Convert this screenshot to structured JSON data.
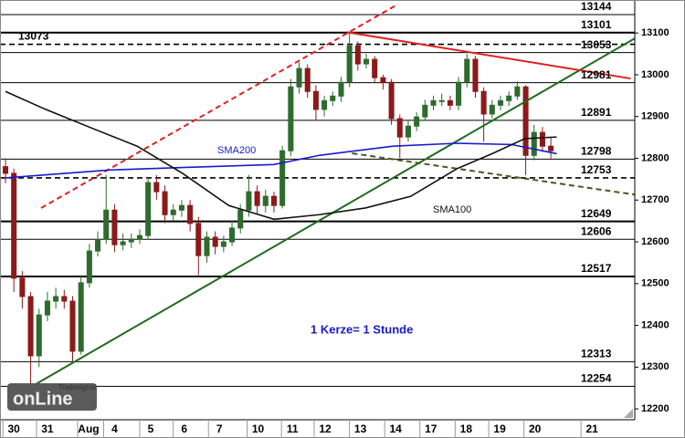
{
  "chart_data": {
    "type": "candlestick",
    "xlim": [
      0,
      75
    ],
    "ylim": [
      12174,
      13179
    ],
    "xticks": [
      {
        "value": 1,
        "label": "30"
      },
      {
        "value": 5,
        "label": "31"
      },
      {
        "value": 9.9,
        "label": "Aug"
      },
      {
        "value": 13,
        "label": "4"
      },
      {
        "value": 17.3,
        "label": "5"
      },
      {
        "value": 21.3,
        "label": "6"
      },
      {
        "value": 25.5,
        "label": "7"
      },
      {
        "value": 30.1,
        "label": "10"
      },
      {
        "value": 34.2,
        "label": "11"
      },
      {
        "value": 38.1,
        "label": "12"
      },
      {
        "value": 42.3,
        "label": "13"
      },
      {
        "value": 46.5,
        "label": "14"
      },
      {
        "value": 50.7,
        "label": "17"
      },
      {
        "value": 54.9,
        "label": "18"
      },
      {
        "value": 58.9,
        "label": "19"
      },
      {
        "value": 63.1,
        "label": "20"
      },
      {
        "value": 69.9,
        "label": "21"
      }
    ],
    "yticks": [
      13100,
      13000,
      12900,
      12800,
      12700,
      12600,
      12500,
      12400,
      12300,
      12200
    ],
    "up_color": "#2e6b2e",
    "down_color": "#8b1a1a",
    "candles": [
      [
        12780,
        12800,
        12740,
        12764
      ],
      [
        12764,
        12775,
        12480,
        12513
      ],
      [
        12513,
        12530,
        12440,
        12469
      ],
      [
        12469,
        12480,
        12254,
        12327
      ],
      [
        12327,
        12440,
        12300,
        12425
      ],
      [
        12425,
        12480,
        12410,
        12458
      ],
      [
        12458,
        12490,
        12440,
        12469
      ],
      [
        12469,
        12485,
        12440,
        12458
      ],
      [
        12458,
        12470,
        12310,
        12338
      ],
      [
        12338,
        12520,
        12330,
        12502
      ],
      [
        12502,
        12595,
        12490,
        12578
      ],
      [
        12578,
        12625,
        12565,
        12606
      ],
      [
        12606,
        12760,
        12595,
        12676
      ],
      [
        12676,
        12690,
        12575,
        12593
      ],
      [
        12593,
        12620,
        12580,
        12600
      ],
      [
        12600,
        12620,
        12585,
        12606
      ],
      [
        12606,
        12630,
        12595,
        12615
      ],
      [
        12615,
        12755,
        12605,
        12742
      ],
      [
        12742,
        12760,
        12700,
        12720
      ],
      [
        12720,
        12735,
        12645,
        12665
      ],
      [
        12665,
        12690,
        12650,
        12676
      ],
      [
        12676,
        12700,
        12660,
        12687
      ],
      [
        12687,
        12700,
        12625,
        12644
      ],
      [
        12644,
        12660,
        12520,
        12567
      ],
      [
        12567,
        12625,
        12550,
        12611
      ],
      [
        12611,
        12625,
        12570,
        12589
      ],
      [
        12589,
        12615,
        12575,
        12600
      ],
      [
        12600,
        12650,
        12590,
        12633
      ],
      [
        12633,
        12690,
        12620,
        12676
      ],
      [
        12676,
        12760,
        12660,
        12720
      ],
      [
        12720,
        12735,
        12665,
        12687
      ],
      [
        12687,
        12725,
        12670,
        12709
      ],
      [
        12709,
        12720,
        12670,
        12687
      ],
      [
        12687,
        12830,
        12680,
        12818
      ],
      [
        12818,
        12990,
        12805,
        12971
      ],
      [
        12971,
        13030,
        12955,
        13015
      ],
      [
        13015,
        13025,
        12945,
        12960
      ],
      [
        12960,
        12975,
        12890,
        12917
      ],
      [
        12917,
        12950,
        12900,
        12938
      ],
      [
        12938,
        12960,
        12925,
        12949
      ],
      [
        12949,
        12995,
        12935,
        12982
      ],
      [
        12982,
        13101,
        12970,
        13069
      ],
      [
        13069,
        13080,
        13010,
        13026
      ],
      [
        13026,
        13050,
        13015,
        13037
      ],
      [
        13037,
        13045,
        12980,
        12993
      ],
      [
        12993,
        13000,
        12965,
        12982
      ],
      [
        12982,
        12990,
        12880,
        12895
      ],
      [
        12895,
        12905,
        12800,
        12851
      ],
      [
        12851,
        12890,
        12840,
        12877
      ],
      [
        12877,
        12910,
        12865,
        12899
      ],
      [
        12899,
        12940,
        12890,
        12927
      ],
      [
        12927,
        12950,
        12915,
        12938
      ],
      [
        12938,
        12955,
        12925,
        12938
      ],
      [
        12938,
        12950,
        12915,
        12927
      ],
      [
        12927,
        12995,
        12915,
        12982
      ],
      [
        12982,
        13050,
        12970,
        13037
      ],
      [
        13037,
        13045,
        12945,
        12960
      ],
      [
        12960,
        12970,
        12840,
        12906
      ],
      [
        12906,
        12940,
        12895,
        12927
      ],
      [
        12927,
        12950,
        12915,
        12938
      ],
      [
        12938,
        12960,
        12925,
        12949
      ],
      [
        12949,
        12985,
        12940,
        12971
      ],
      [
        12971,
        12975,
        12760,
        12807
      ],
      [
        12807,
        12880,
        12795,
        12862
      ],
      [
        12862,
        12875,
        12815,
        12829
      ],
      [
        12829,
        12850,
        12800,
        12818
      ]
    ],
    "levels": [
      {
        "value": 13144,
        "style": "solid",
        "label_side": "right"
      },
      {
        "value": 13101,
        "style": "thick",
        "label_side": "right"
      },
      {
        "value": 13073,
        "style": "dashed",
        "label_side": "left"
      },
      {
        "value": 13053,
        "style": "solid",
        "label_side": "right"
      },
      {
        "value": 12981,
        "style": "solid",
        "label_side": "right"
      },
      {
        "value": 12891,
        "style": "solid",
        "label_side": "right"
      },
      {
        "value": 12798,
        "style": "solid",
        "label_side": "right"
      },
      {
        "value": 12753,
        "style": "dashed",
        "label_side": "right"
      },
      {
        "value": 12649,
        "style": "thick",
        "label_side": "right"
      },
      {
        "value": 12606,
        "style": "solid",
        "label_side": "right"
      },
      {
        "value": 12517,
        "style": "thick",
        "label_side": "right"
      },
      {
        "value": 12313,
        "style": "solid",
        "label_side": "right"
      },
      {
        "value": 12254,
        "style": "solid",
        "label_side": "right"
      }
    ],
    "lines": [
      {
        "color": "#1f6b1f",
        "dashed": false,
        "x": [
          3.16,
          75
        ],
        "y": [
          12254,
          13087
        ]
      },
      {
        "color": "#e02020",
        "dashed": true,
        "x": [
          4.25,
          46.7
        ],
        "y": [
          12681,
          13168
        ]
      },
      {
        "color": "#e02020",
        "dashed": false,
        "x": [
          40.7,
          74.5
        ],
        "y": [
          13102,
          12991
        ]
      },
      {
        "color": "#4a5a1a",
        "dashed": true,
        "x": [
          41.3,
          75
        ],
        "y": [
          12812,
          12713
        ]
      },
      {
        "name": "SMA200",
        "color": "#1a1acc",
        "dashed": false,
        "x": [
          0,
          12.4,
          21.1,
          32,
          37.4,
          46.2,
          53.8,
          60.3,
          65.7
        ],
        "y": [
          12753,
          12772,
          12778,
          12785,
          12807,
          12829,
          12836,
          12833,
          12811
        ]
      },
      {
        "name": "SMA100",
        "color": "#111111",
        "dashed": false,
        "x": [
          0,
          4.8,
          10.2,
          15.7,
          21.1,
          26.6,
          32,
          37.4,
          42.9,
          48.3,
          53.8,
          58.1,
          61.9,
          65.7
        ],
        "y": [
          12960,
          12917,
          12873,
          12829,
          12764,
          12687,
          12654,
          12665,
          12681,
          12709,
          12775,
          12812,
          12847,
          12851
        ]
      }
    ],
    "note": "1 Kerze= 1 Stunde",
    "logo": {
      "brand": "Tradesignal",
      "name": "onLine"
    }
  }
}
